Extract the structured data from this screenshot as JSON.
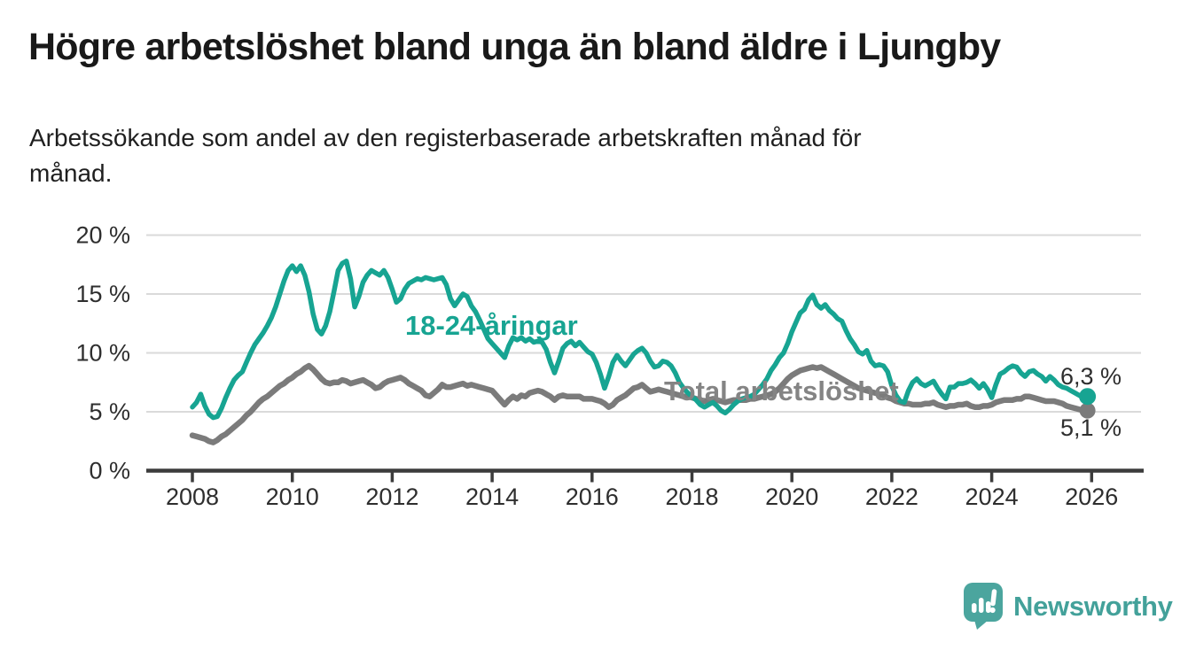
{
  "header": {
    "title": "Högre arbetslöshet bland unga än bland äldre i Ljungby",
    "subtitle_lines": [
      "Arbetssökande som andel av den registerbaserade arbetskraften månad för",
      "månad."
    ]
  },
  "footer": {
    "brand": "Newsworthy",
    "brand_color": "#43a19a",
    "icon_color": "#4ba59e"
  },
  "chart_data": {
    "type": "line",
    "title": "Högre arbetslöshet bland unga än bland äldre i Ljungby",
    "subtitle": "Arbetssökande som andel av den registerbaserade arbetskraften månad för månad.",
    "grid": "horizontal",
    "legend_position": "inline-labels",
    "x_axis": {
      "start_year": 2008,
      "points_per_year": 12,
      "unit": "year"
    },
    "ylim": [
      0,
      21
    ],
    "y_gridline_values": [
      5,
      10,
      15,
      20
    ],
    "y_ticks": [
      {
        "value": 0,
        "label": "0 %"
      },
      {
        "value": 5,
        "label": "5 %"
      },
      {
        "value": 10,
        "label": "10 %"
      },
      {
        "value": 15,
        "label": "15 %"
      },
      {
        "value": 20,
        "label": "20 %"
      }
    ],
    "x_ticks": [
      {
        "value": 2008,
        "label": "2008"
      },
      {
        "value": 2010,
        "label": "2010"
      },
      {
        "value": 2012,
        "label": "2012"
      },
      {
        "value": 2014,
        "label": "2014"
      },
      {
        "value": 2016,
        "label": "2016"
      },
      {
        "value": 2018,
        "label": "2018"
      },
      {
        "value": 2020,
        "label": "2020"
      },
      {
        "value": 2022,
        "label": "2022"
      },
      {
        "value": 2024,
        "label": "2024"
      },
      {
        "value": 2026,
        "label": "2026"
      }
    ],
    "series": [
      {
        "id": "total",
        "name": "Total arbetslöshet",
        "color": "#7b7b7b",
        "label_color": "#848484",
        "end_value": 5.1,
        "end_label": "5,1 %",
        "values": [
          3.0,
          2.9,
          2.8,
          2.7,
          2.5,
          2.4,
          2.6,
          2.9,
          3.1,
          3.4,
          3.7,
          4.0,
          4.3,
          4.7,
          5.0,
          5.4,
          5.8,
          6.1,
          6.3,
          6.6,
          6.9,
          7.2,
          7.4,
          7.7,
          7.9,
          8.2,
          8.4,
          8.7,
          8.9,
          8.6,
          8.2,
          7.8,
          7.5,
          7.4,
          7.5,
          7.5,
          7.7,
          7.6,
          7.4,
          7.5,
          7.6,
          7.7,
          7.5,
          7.3,
          7.0,
          7.1,
          7.4,
          7.6,
          7.7,
          7.8,
          7.9,
          7.7,
          7.4,
          7.2,
          7.0,
          6.8,
          6.4,
          6.3,
          6.6,
          6.9,
          7.3,
          7.1,
          7.1,
          7.2,
          7.3,
          7.4,
          7.2,
          7.3,
          7.2,
          7.1,
          7.0,
          6.9,
          6.8,
          6.4,
          6.0,
          5.6,
          6.0,
          6.3,
          6.1,
          6.4,
          6.3,
          6.6,
          6.7,
          6.8,
          6.7,
          6.5,
          6.3,
          6.0,
          6.3,
          6.4,
          6.3,
          6.3,
          6.3,
          6.3,
          6.1,
          6.1,
          6.1,
          6.0,
          5.9,
          5.7,
          5.4,
          5.6,
          6.0,
          6.2,
          6.4,
          6.7,
          7.0,
          7.1,
          7.3,
          7.0,
          6.7,
          6.8,
          6.9,
          6.8,
          6.7,
          6.6,
          6.5,
          6.4,
          6.3,
          6.3,
          6.2,
          6.1,
          6.0,
          5.9,
          6.0,
          6.1,
          6.0,
          5.9,
          5.8,
          5.9,
          6.0,
          6.0,
          6.0,
          6.0,
          6.1,
          6.1,
          6.2,
          6.3,
          6.4,
          6.5,
          6.7,
          7.0,
          7.4,
          7.8,
          8.1,
          8.3,
          8.5,
          8.6,
          8.7,
          8.8,
          8.7,
          8.8,
          8.6,
          8.4,
          8.2,
          8.0,
          7.8,
          7.6,
          7.4,
          7.2,
          7.0,
          6.9,
          6.8,
          6.7,
          6.6,
          6.5,
          6.4,
          6.2,
          6.1,
          5.9,
          5.8,
          5.7,
          5.7,
          5.6,
          5.6,
          5.6,
          5.7,
          5.7,
          5.8,
          5.6,
          5.5,
          5.4,
          5.5,
          5.5,
          5.6,
          5.6,
          5.7,
          5.5,
          5.4,
          5.4,
          5.5,
          5.5,
          5.6,
          5.8,
          5.9,
          6.0,
          6.0,
          6.0,
          6.1,
          6.1,
          6.3,
          6.3,
          6.2,
          6.1,
          6.0,
          5.9,
          5.9,
          5.9,
          5.8,
          5.7,
          5.5,
          5.4,
          5.3,
          5.2,
          5.1,
          5.1
        ]
      },
      {
        "id": "youth",
        "name": "18-24-åringar",
        "color": "#17a492",
        "label_color": "#17a492",
        "end_value": 6.3,
        "end_label": "6,3 %",
        "values": [
          5.4,
          5.8,
          6.5,
          5.5,
          4.8,
          4.5,
          4.6,
          5.3,
          6.2,
          7.0,
          7.7,
          8.1,
          8.4,
          9.2,
          10.0,
          10.7,
          11.2,
          11.7,
          12.3,
          13.0,
          13.9,
          15.0,
          16.1,
          17.0,
          17.4,
          16.9,
          17.4,
          16.6,
          15.2,
          13.3,
          12.0,
          11.6,
          12.3,
          13.5,
          15.2,
          17.0,
          17.6,
          17.8,
          16.3,
          13.9,
          14.8,
          16.0,
          16.6,
          17.0,
          16.8,
          16.6,
          17.0,
          16.4,
          15.4,
          14.3,
          14.6,
          15.4,
          15.9,
          16.1,
          16.3,
          16.2,
          16.4,
          16.3,
          16.2,
          16.3,
          16.4,
          15.8,
          14.6,
          14.0,
          14.5,
          15.0,
          14.8,
          14.0,
          13.5,
          12.8,
          12.0,
          11.2,
          10.8,
          10.4,
          10.0,
          9.6,
          10.6,
          11.3,
          11.1,
          11.3,
          11.0,
          11.2,
          10.9,
          11.0,
          10.9,
          10.3,
          9.2,
          8.3,
          9.3,
          10.4,
          10.8,
          11.0,
          10.6,
          10.9,
          10.5,
          10.1,
          9.9,
          9.2,
          8.2,
          7.0,
          8.0,
          9.2,
          9.8,
          9.3,
          8.9,
          9.4,
          9.9,
          10.2,
          10.4,
          10.0,
          9.3,
          8.8,
          8.9,
          9.3,
          9.2,
          8.9,
          8.3,
          7.5,
          7.0,
          6.6,
          6.3,
          6.0,
          5.6,
          5.4,
          5.6,
          5.8,
          5.5,
          5.1,
          4.9,
          5.2,
          5.6,
          5.9,
          6.1,
          6.2,
          6.3,
          6.5,
          6.9,
          7.3,
          7.8,
          8.5,
          9.0,
          9.6,
          10.0,
          10.8,
          11.8,
          12.6,
          13.4,
          13.7,
          14.5,
          14.9,
          14.1,
          13.8,
          14.1,
          13.6,
          13.3,
          12.9,
          12.7,
          11.9,
          11.2,
          10.7,
          10.1,
          9.9,
          10.2,
          9.3,
          8.9,
          9.0,
          8.9,
          8.4,
          7.2,
          6.4,
          5.9,
          5.8,
          6.8,
          7.5,
          7.8,
          7.4,
          7.2,
          7.4,
          7.6,
          7.0,
          6.5,
          6.1,
          7.1,
          7.1,
          7.4,
          7.4,
          7.5,
          7.7,
          7.4,
          7.0,
          7.4,
          6.9,
          6.2,
          7.3,
          8.2,
          8.4,
          8.7,
          8.9,
          8.8,
          8.3,
          8.0,
          8.4,
          8.5,
          8.2,
          8.0,
          7.6,
          8.0,
          7.7,
          7.3,
          7.1,
          7.0,
          6.8,
          6.6,
          6.4,
          6.2,
          6.3
        ]
      }
    ]
  }
}
